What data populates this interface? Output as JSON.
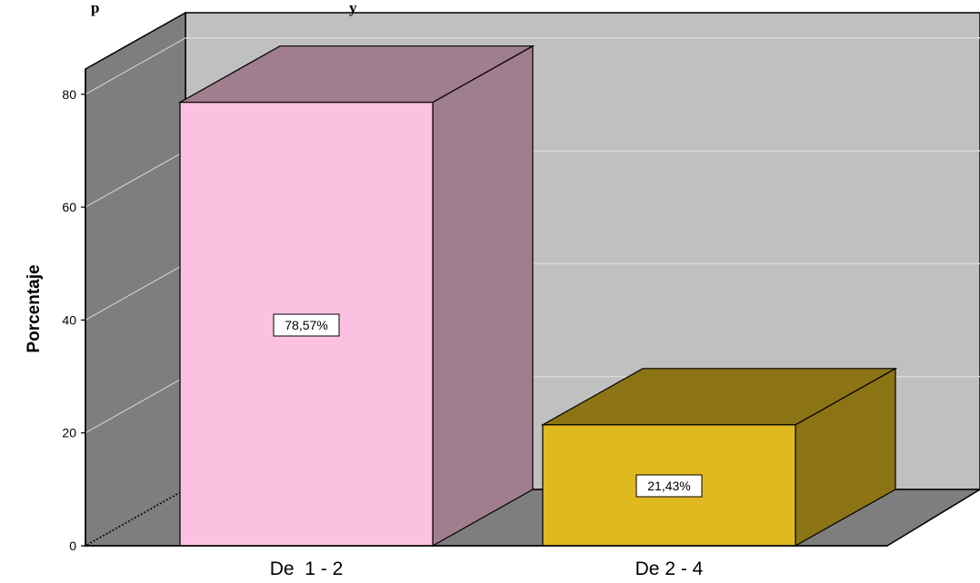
{
  "chart_data": {
    "type": "bar",
    "title_fragment_left": "p",
    "title_fragment_right": "y",
    "categories": [
      "De  1 - 2",
      "De 2 - 4"
    ],
    "values": [
      78.57,
      21.43
    ],
    "data_labels": [
      "78,57%",
      "21,43%"
    ],
    "ylabel": "Porcentaje",
    "xlabel": "",
    "ylim": [
      0,
      80
    ],
    "yticks": [
      "0",
      "20",
      "40",
      "60",
      "80"
    ],
    "grid": true,
    "three_d": true,
    "legend": "none",
    "colors": {
      "bar_front": [
        "#fcc0e0",
        "#e0b820"
      ],
      "bar_side": [
        "#a07e8e",
        "#8c7414"
      ],
      "bar_top": [
        "#a07e8e",
        "#8c7414"
      ],
      "back_wall": "#c0c0c0",
      "side_wall": "#7e7e7e",
      "floor": "#7e7e7e",
      "grid_line": "#d8d8d8"
    }
  }
}
